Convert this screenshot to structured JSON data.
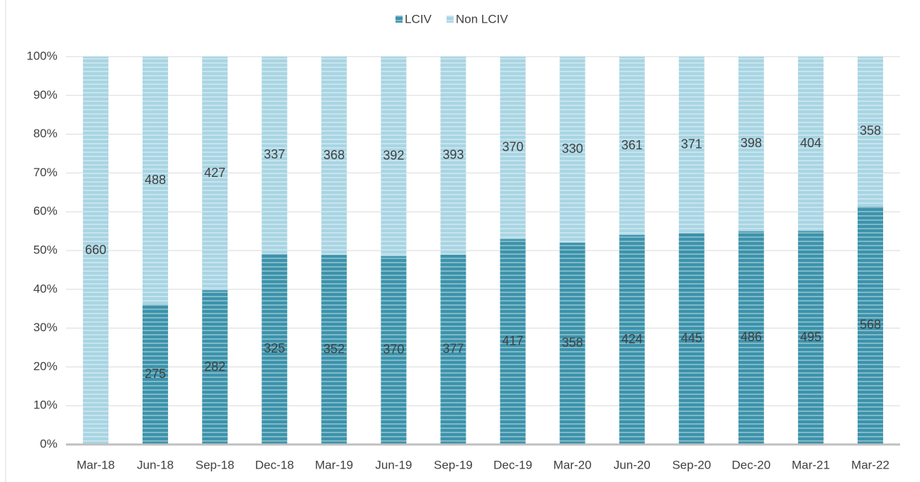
{
  "chart_data": {
    "type": "bar",
    "stacking": "percent",
    "categories": [
      "Mar-18",
      "Jun-18",
      "Sep-18",
      "Dec-18",
      "Mar-19",
      "Jun-19",
      "Sep-19",
      "Dec-19",
      "Mar-20",
      "Jun-20",
      "Sep-20",
      "Dec-20",
      "Mar-21",
      "Mar-22"
    ],
    "series": [
      {
        "name": "LCIV",
        "color": "#3c93ab",
        "values": [
          null,
          275,
          282,
          325,
          352,
          370,
          377,
          417,
          358,
          424,
          445,
          486,
          495,
          568
        ]
      },
      {
        "name": "Non LCIV",
        "color": "#a9d5e3",
        "values": [
          660,
          488,
          427,
          337,
          368,
          392,
          393,
          370,
          330,
          361,
          371,
          398,
          404,
          358
        ]
      }
    ],
    "ylim": [
      0,
      100
    ],
    "yticks": [
      {
        "value": 0,
        "label": "0%"
      },
      {
        "value": 10,
        "label": "10%"
      },
      {
        "value": 20,
        "label": "20%"
      },
      {
        "value": 30,
        "label": "30%"
      },
      {
        "value": 40,
        "label": "40%"
      },
      {
        "value": 50,
        "label": "50%"
      },
      {
        "value": 60,
        "label": "60%"
      },
      {
        "value": 70,
        "label": "70%"
      },
      {
        "value": 80,
        "label": "80%"
      },
      {
        "value": 90,
        "label": "90%"
      },
      {
        "value": 100,
        "label": "100%"
      }
    ],
    "grid": true,
    "legend": "top"
  }
}
